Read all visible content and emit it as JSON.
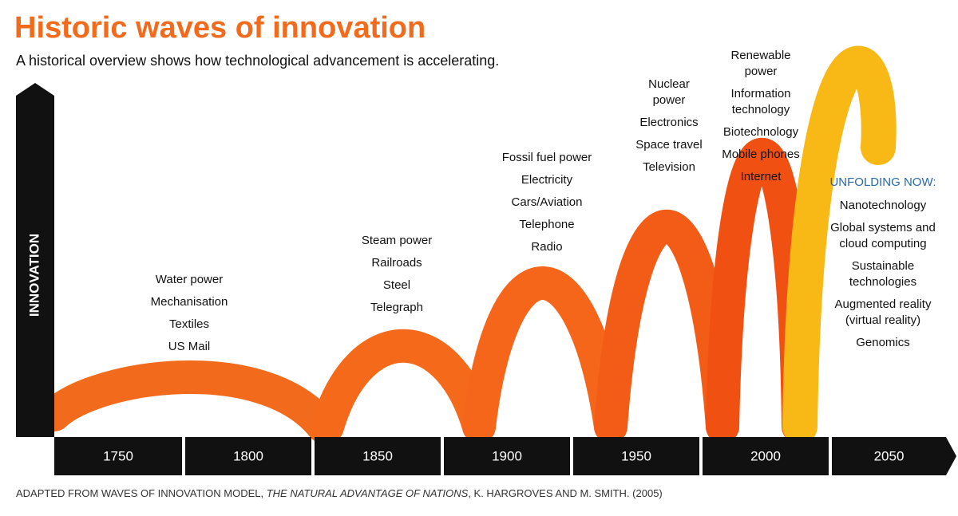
{
  "title": "Historic waves of innovation",
  "subtitle": "A historical overview shows how technological advancement is accelerating.",
  "y_axis_label": "INNOVATION",
  "years": [
    "1750",
    "1800",
    "1850",
    "1900",
    "1950",
    "2000",
    "2050"
  ],
  "waves": [
    {
      "items": [
        [
          "Water power"
        ],
        [
          "Mechanisation"
        ],
        [
          "Textiles"
        ],
        [
          "US Mail"
        ]
      ]
    },
    {
      "items": [
        [
          "Steam power"
        ],
        [
          "Railroads"
        ],
        [
          "Steel"
        ],
        [
          "Telegraph"
        ]
      ]
    },
    {
      "items": [
        [
          "Fossil fuel power"
        ],
        [
          "Electricity"
        ],
        [
          "Cars/Aviation"
        ],
        [
          "Telephone"
        ],
        [
          "Radio"
        ]
      ]
    },
    {
      "items": [
        [
          "Nuclear",
          "power"
        ],
        [
          "Electronics"
        ],
        [
          "Space travel"
        ],
        [
          "Television"
        ]
      ]
    },
    {
      "items": [
        [
          "Renewable",
          "power"
        ],
        [
          "Information",
          "technology"
        ],
        [
          "Biotechnology"
        ],
        [
          "Mobile phones"
        ],
        [
          "Internet"
        ]
      ]
    },
    {
      "heading": "UNFOLDING NOW:",
      "items": [
        [
          "Nanotechnology"
        ],
        [
          "Global systems and",
          "cloud computing"
        ],
        [
          "Sustainable",
          "technologies"
        ],
        [
          "Augmented reality",
          "(virtual reality)"
        ],
        [
          "Genomics"
        ]
      ]
    }
  ],
  "source": {
    "before": "ADAPTED FROM WAVES OF INNOVATION MODEL, ",
    "italic": "THE NATURAL ADVANTAGE OF NATIONS",
    "after": ", K. HARGROVES AND M. SMITH. (2005)"
  }
}
